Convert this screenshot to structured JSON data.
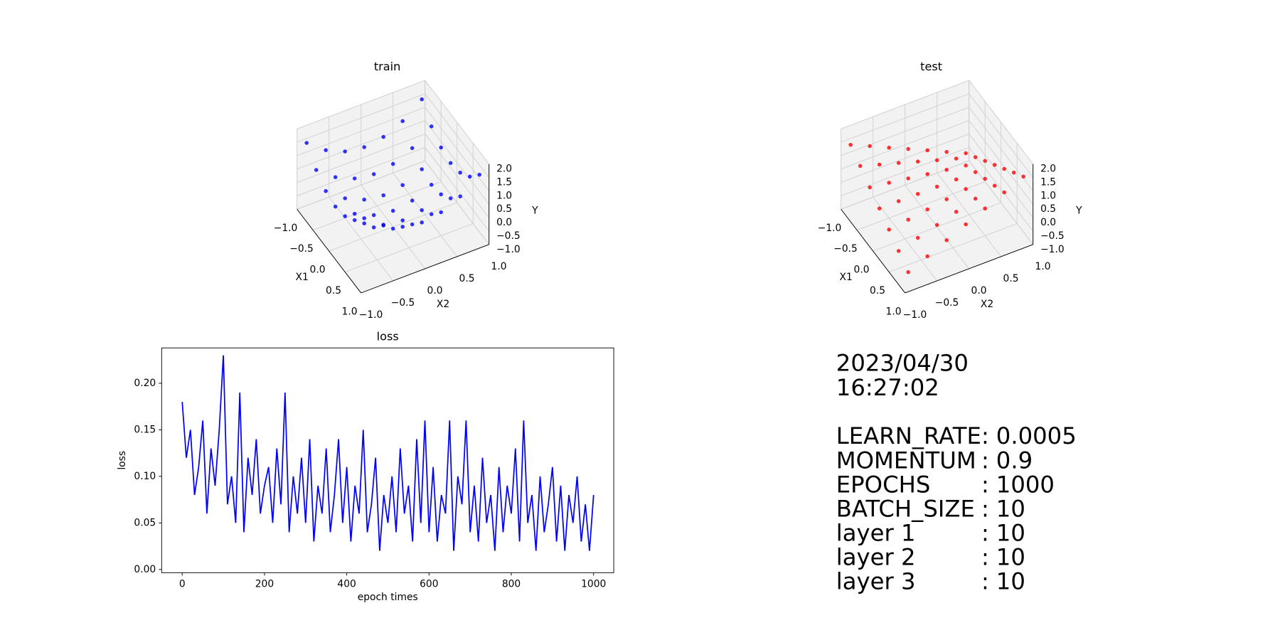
{
  "chart_data": [
    {
      "type": "scatter3d",
      "title": "train",
      "xlabel": "X1",
      "ylabel": "X2",
      "zlabel": "Y",
      "color": "#0000ff",
      "xlim": [
        -1,
        1
      ],
      "ylim": [
        -1,
        1
      ],
      "zlim": [
        -1,
        2
      ],
      "xticks": [
        {
          "value": -1,
          "label": "−1.0"
        },
        {
          "value": -0.5,
          "label": "−0.5"
        },
        {
          "value": 0,
          "label": "0.0"
        },
        0.5,
        {
          "value": 1,
          "label": "1.0"
        }
      ],
      "yticks": [
        {
          "value": -1,
          "label": "−1.0"
        },
        {
          "value": -0.5,
          "label": "−0.5"
        },
        {
          "value": 0,
          "label": "0.0"
        },
        0.5,
        {
          "value": 1,
          "label": "1.0"
        }
      ],
      "zticks": [
        {
          "value": -1,
          "label": "−1.0"
        },
        {
          "value": -0.5,
          "label": "−0.5"
        },
        {
          "value": 0,
          "label": "0.0"
        },
        0.5,
        {
          "value": 1,
          "label": "1.0"
        },
        1.5,
        {
          "value": 2,
          "label": "2.0"
        }
      ],
      "x": [
        -0.9,
        -0.9,
        -0.9,
        -0.9,
        -0.9,
        -0.9,
        -0.9,
        -0.6,
        -0.6,
        -0.6,
        -0.6,
        -0.6,
        -0.6,
        -0.6,
        -0.3,
        -0.3,
        -0.3,
        -0.3,
        -0.3,
        -0.3,
        -0.3,
        0,
        0,
        0,
        0,
        0,
        0,
        0,
        0.3,
        0.3,
        0.3,
        0.3,
        0.3,
        0.3,
        0.3,
        0.6,
        0.6,
        0.6,
        0.6,
        0.6,
        0.6,
        0.6,
        0.9,
        0.9,
        0.9,
        0.9,
        0.9,
        0.9,
        0.9
      ],
      "y": [
        -0.9,
        -0.6,
        -0.3,
        0,
        0.3,
        0.6,
        0.9,
        -0.9,
        -0.6,
        -0.3,
        0,
        0.3,
        0.6,
        0.9,
        -0.9,
        -0.6,
        -0.3,
        0,
        0.3,
        0.6,
        0.9,
        -0.9,
        -0.6,
        -0.3,
        0,
        0.3,
        0.6,
        0.9,
        -0.9,
        -0.6,
        -0.3,
        0,
        0.3,
        0.6,
        0.9,
        -0.9,
        -0.6,
        -0.3,
        0,
        0.3,
        0.6,
        0.9,
        -0.9,
        -0.6,
        -0.3,
        0,
        0.3,
        0.6,
        0.9
      ],
      "z": [
        1.54,
        1.0,
        0.68,
        0.57,
        0.68,
        1.0,
        1.54,
        1.0,
        0.46,
        0.14,
        0.03,
        0.14,
        0.46,
        1.0,
        0.68,
        0.14,
        -0.18,
        -0.29,
        -0.18,
        0.14,
        0.68,
        0.57,
        0.03,
        -0.29,
        -0.4,
        -0.29,
        0.03,
        0.57,
        0.68,
        0.14,
        -0.18,
        -0.29,
        -0.18,
        0.14,
        0.68,
        1.0,
        0.46,
        0.14,
        0.03,
        0.14,
        0.46,
        1.0,
        1.54,
        1.0,
        0.68,
        0.57,
        0.68,
        1.0,
        1.54
      ]
    },
    {
      "type": "scatter3d",
      "title": "test",
      "xlabel": "X1",
      "ylabel": "X2",
      "zlabel": "Y",
      "color": "#ff0000",
      "xlim": [
        -1,
        1
      ],
      "ylim": [
        -1,
        1
      ],
      "zlim": [
        -1,
        2
      ],
      "xticks": [
        {
          "value": -1,
          "label": "−1.0"
        },
        {
          "value": -0.5,
          "label": "−0.5"
        },
        {
          "value": 0,
          "label": "0.0"
        },
        0.5,
        {
          "value": 1,
          "label": "1.0"
        }
      ],
      "yticks": [
        {
          "value": -1,
          "label": "−1.0"
        },
        {
          "value": -0.5,
          "label": "−0.5"
        },
        {
          "value": 0,
          "label": "0.0"
        },
        0.5,
        {
          "value": 1,
          "label": "1.0"
        }
      ],
      "zticks": [
        {
          "value": -1,
          "label": "−1.0"
        },
        {
          "value": -0.5,
          "label": "−0.5"
        },
        {
          "value": 0,
          "label": "0.0"
        },
        0.5,
        {
          "value": 1,
          "label": "1.0"
        },
        1.5,
        {
          "value": 2,
          "label": "2.0"
        }
      ],
      "x": [
        -0.9,
        -0.9,
        -0.9,
        -0.9,
        -0.9,
        -0.9,
        -0.9,
        -0.6,
        -0.6,
        -0.6,
        -0.6,
        -0.6,
        -0.6,
        -0.6,
        -0.3,
        -0.3,
        -0.3,
        -0.3,
        -0.3,
        -0.3,
        -0.3,
        0,
        0,
        0,
        0,
        0,
        0,
        0,
        0.3,
        0.3,
        0.3,
        0.3,
        0.3,
        0.3,
        0.3,
        0.6,
        0.6,
        0.6,
        0.6,
        0.6,
        0.6,
        0.6,
        0.9,
        0.9,
        0.9,
        0.9,
        0.9,
        0.9,
        0.9
      ],
      "y": [
        -0.9,
        -0.6,
        -0.3,
        0,
        0.3,
        0.6,
        0.9,
        -0.9,
        -0.6,
        -0.3,
        0,
        0.3,
        0.6,
        0.9,
        -0.9,
        -0.6,
        -0.3,
        0,
        0.3,
        0.6,
        0.9,
        -0.9,
        -0.6,
        -0.3,
        0,
        0.3,
        0.6,
        0.9,
        -0.9,
        -0.6,
        -0.3,
        0,
        0.3,
        0.6,
        0.9,
        -0.9,
        -0.6,
        -0.3,
        0,
        0.3,
        0.6,
        0.9,
        -0.9,
        -0.6,
        -0.3,
        0,
        0.3,
        0.6,
        0.9
      ],
      "z": [
        1.47,
        1.15,
        0.82,
        0.5,
        0.18,
        -0.15,
        -0.47,
        1.15,
        0.93,
        0.72,
        0.5,
        0.28,
        0.07,
        -0.15,
        0.82,
        0.72,
        0.61,
        0.5,
        0.39,
        0.28,
        0.18,
        0.5,
        0.5,
        0.5,
        0.5,
        0.5,
        0.5,
        0.5,
        0.18,
        0.28,
        0.39,
        0.5,
        0.61,
        0.72,
        0.82,
        -0.15,
        0.07,
        0.28,
        0.5,
        0.72,
        0.93,
        1.15,
        -0.47,
        -0.15,
        0.18,
        0.5,
        0.82,
        1.15,
        1.47
      ]
    },
    {
      "type": "line",
      "title": "loss",
      "xlabel": "epoch times",
      "ylabel": "loss",
      "color": "#0000ff",
      "xlim": [
        -50,
        1049
      ],
      "ylim": [
        -0.0035,
        0.238
      ],
      "xticks": [
        0,
        200,
        400,
        600,
        800,
        1000
      ],
      "yticks": [
        {
          "value": 0,
          "label": "0.00"
        },
        {
          "value": 0.05,
          "label": "0.05"
        },
        {
          "value": 0.1,
          "label": "0.10"
        },
        {
          "value": 0.15,
          "label": "0.15"
        },
        {
          "value": 0.2,
          "label": "0.20"
        }
      ],
      "x": [
        0,
        10,
        20,
        30,
        40,
        50,
        60,
        70,
        80,
        90,
        100,
        110,
        120,
        130,
        140,
        150,
        160,
        170,
        180,
        190,
        200,
        210,
        220,
        230,
        240,
        250,
        260,
        270,
        280,
        290,
        300,
        310,
        320,
        330,
        340,
        350,
        360,
        370,
        380,
        390,
        400,
        410,
        420,
        430,
        440,
        450,
        460,
        470,
        480,
        490,
        500,
        510,
        520,
        530,
        540,
        550,
        560,
        570,
        580,
        590,
        600,
        610,
        620,
        630,
        640,
        650,
        660,
        670,
        680,
        690,
        700,
        710,
        720,
        730,
        740,
        750,
        760,
        770,
        780,
        790,
        800,
        810,
        820,
        830,
        840,
        850,
        860,
        870,
        880,
        890,
        900,
        910,
        920,
        930,
        940,
        950,
        960,
        970,
        980,
        990,
        1000
      ],
      "values": [
        0.18,
        0.12,
        0.15,
        0.08,
        0.11,
        0.16,
        0.06,
        0.13,
        0.09,
        0.15,
        0.23,
        0.07,
        0.1,
        0.05,
        0.19,
        0.04,
        0.12,
        0.08,
        0.14,
        0.06,
        0.09,
        0.11,
        0.05,
        0.13,
        0.07,
        0.19,
        0.04,
        0.1,
        0.06,
        0.12,
        0.05,
        0.14,
        0.03,
        0.09,
        0.06,
        0.13,
        0.04,
        0.08,
        0.14,
        0.05,
        0.11,
        0.03,
        0.09,
        0.06,
        0.15,
        0.04,
        0.07,
        0.12,
        0.02,
        0.08,
        0.05,
        0.1,
        0.04,
        0.13,
        0.06,
        0.09,
        0.03,
        0.14,
        0.05,
        0.16,
        0.04,
        0.11,
        0.03,
        0.08,
        0.06,
        0.16,
        0.02,
        0.1,
        0.07,
        0.16,
        0.04,
        0.09,
        0.03,
        0.12,
        0.05,
        0.08,
        0.02,
        0.11,
        0.04,
        0.09,
        0.06,
        0.13,
        0.03,
        0.16,
        0.05,
        0.08,
        0.02,
        0.1,
        0.04,
        0.07,
        0.11,
        0.03,
        0.09,
        0.02,
        0.08,
        0.05,
        0.1,
        0.03,
        0.07,
        0.02,
        0.08
      ]
    }
  ],
  "info": {
    "date": "2023/04/30",
    "time": "16:27:02",
    "separator": ":",
    "params": [
      {
        "name": "LEARN_RATE",
        "value": 0.0005
      },
      {
        "name": "MOMENTUM",
        "value": 0.9
      },
      {
        "name": "EPOCHS",
        "value": 1000
      },
      {
        "name": "BATCH_SIZE",
        "value": 10
      },
      {
        "name": "layer 1",
        "value": 10
      },
      {
        "name": "layer 2",
        "value": 10
      },
      {
        "name": "layer 3",
        "value": 10
      }
    ]
  }
}
